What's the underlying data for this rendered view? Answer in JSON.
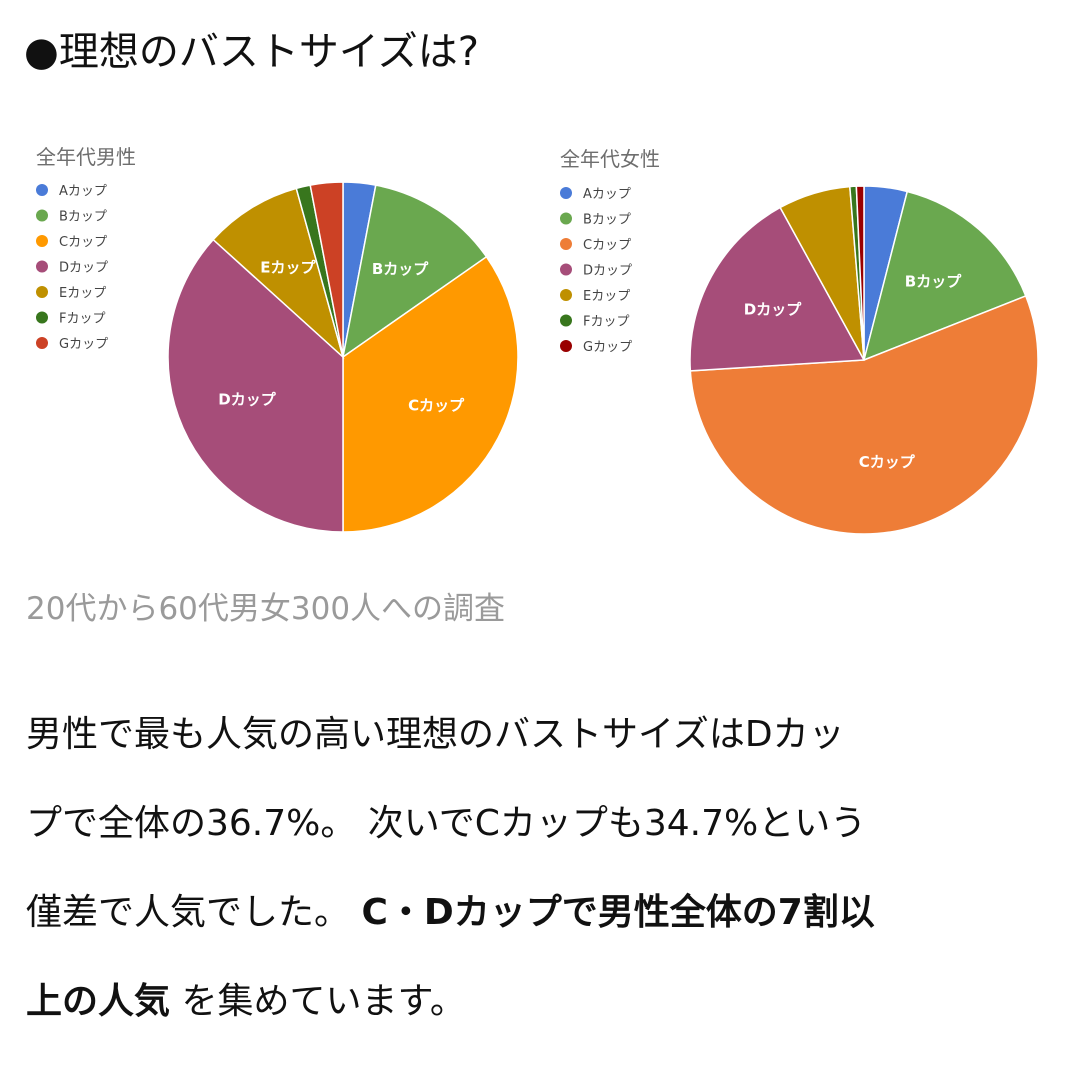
{
  "heading": "●理想のバストサイズは?",
  "caption": "20代から60代男女300人への調査",
  "body_lines": [
    {
      "plain": "男性で最も人気の高い理想のバストサイズはDカッ"
    },
    {
      "plain": "プで全体の36.7%。 次いでCカップも34.7%という"
    },
    {
      "plain": "僅差で人気でした。 ",
      "bold": "C・Dカップで男性全体の7割以"
    },
    {
      "bold": "上の人気",
      "plain": " を集めています。"
    }
  ],
  "chart_data": [
    {
      "type": "pie",
      "title": "全年代男性",
      "legend_position": "left",
      "categories": [
        "Aカップ",
        "Bカップ",
        "Cカップ",
        "Dカップ",
        "Eカップ",
        "Fカップ",
        "Gカップ"
      ],
      "values": [
        3.0,
        12.3,
        34.7,
        36.7,
        9.0,
        1.3,
        3.0
      ],
      "unit": "%",
      "colors": [
        "#4a7bd8",
        "#6aa84f",
        "#ff9900",
        "#a64d79",
        "#bf9000",
        "#38761d",
        "#cc4125"
      ],
      "slice_labels": [
        "",
        "Bカップ",
        "Cカップ",
        "Dカップ",
        "Eカップ",
        "",
        ""
      ]
    },
    {
      "type": "pie",
      "title": "全年代女性",
      "legend_position": "left",
      "categories": [
        "Aカップ",
        "Bカップ",
        "Cカップ",
        "Dカップ",
        "Eカップ",
        "Fカップ",
        "Gカップ"
      ],
      "values": [
        4.0,
        15.0,
        55.0,
        18.0,
        6.7,
        0.6,
        0.7
      ],
      "unit": "%",
      "colors": [
        "#4a7bd8",
        "#6aa84f",
        "#ee7d37",
        "#a64d79",
        "#bf9000",
        "#38761d",
        "#990000"
      ],
      "slice_labels": [
        "",
        "Bカップ",
        "Cカップ",
        "Dカップ",
        "",
        "",
        ""
      ]
    }
  ]
}
